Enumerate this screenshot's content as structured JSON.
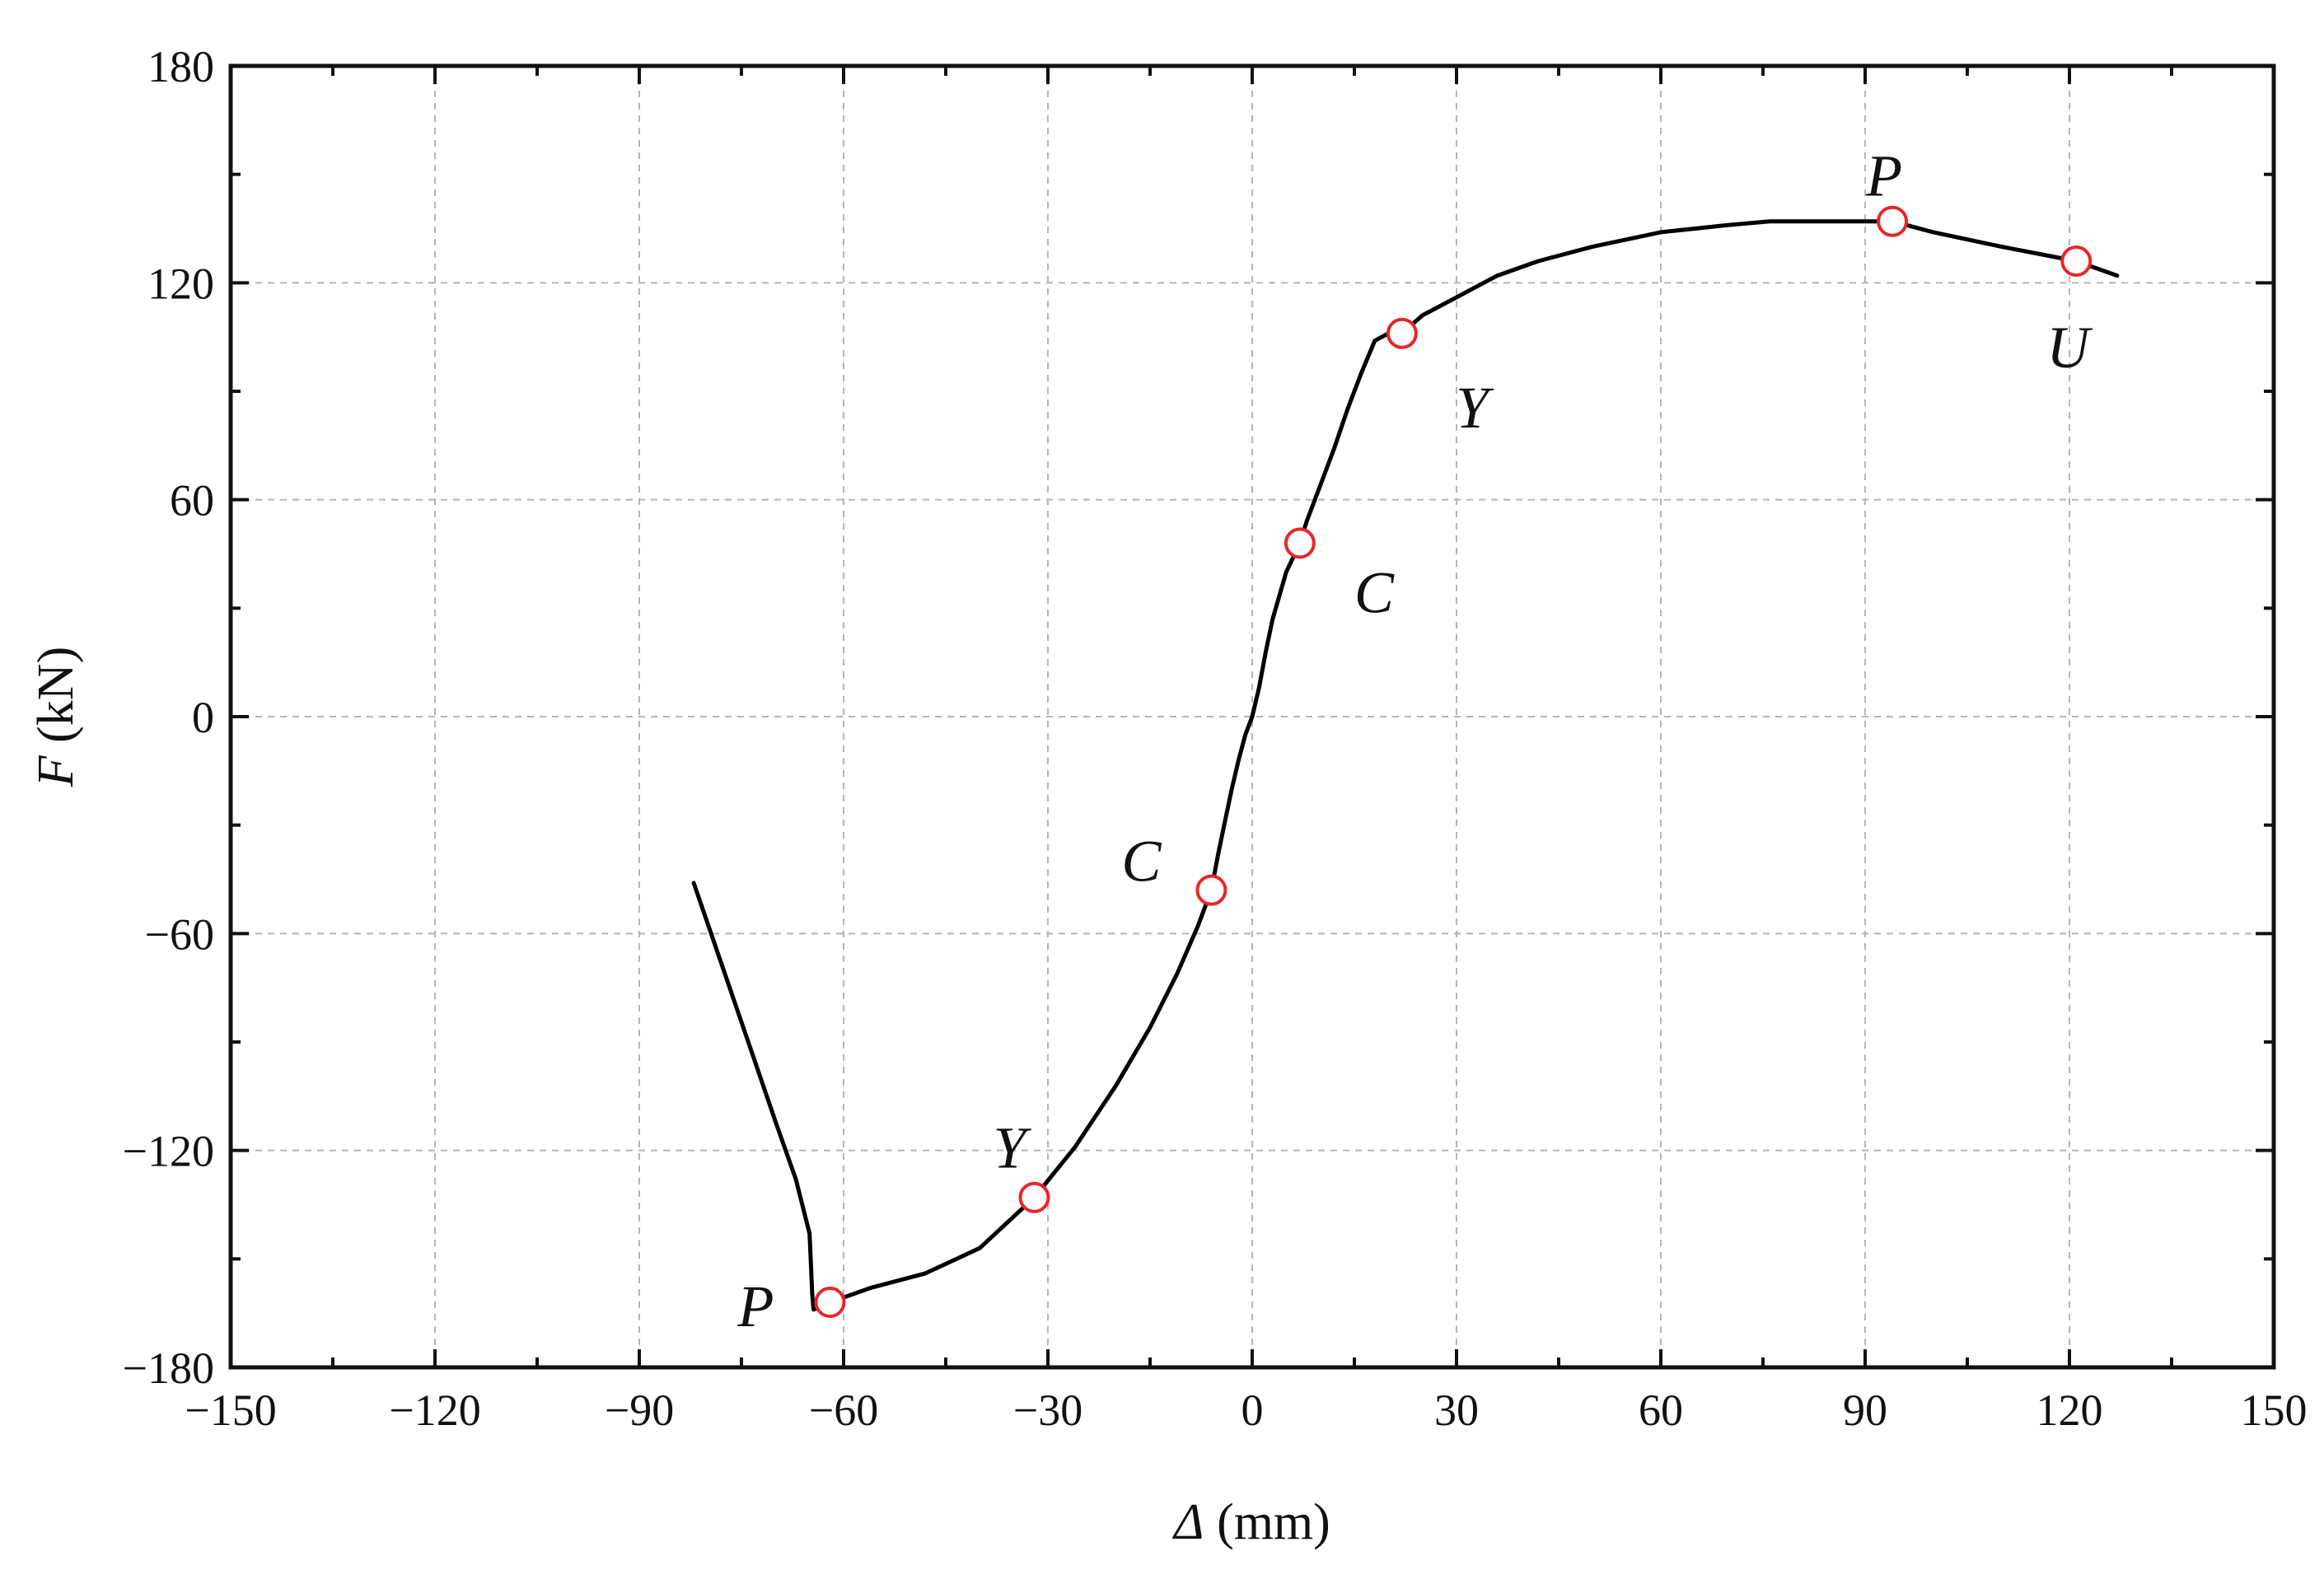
{
  "chart_data": {
    "type": "line",
    "title": "",
    "xlabel": {
      "symbol": "Δ",
      "unit": " (mm)"
    },
    "ylabel": {
      "symbol": "F",
      "unit": "  (kN)"
    },
    "xlim": [
      -150,
      150
    ],
    "ylim": [
      -180,
      180
    ],
    "xticks": [
      -150,
      -120,
      -90,
      -60,
      -30,
      0,
      30,
      60,
      90,
      120,
      150
    ],
    "yticks": [
      -180,
      -120,
      -60,
      0,
      60,
      120,
      180
    ],
    "xtick_labels": [
      "−150",
      "−120",
      "−90",
      "−60",
      "−30",
      "0",
      "30",
      "60",
      "90",
      "120",
      "150"
    ],
    "ytick_labels": [
      "−180",
      "−120",
      "−60",
      "0",
      "60",
      "120",
      "180"
    ],
    "grid": true,
    "series": [
      {
        "x": [
          -82,
          -78,
          -74,
          -70,
          -67,
          -65,
          -64.6,
          -64.4,
          -62,
          -56,
          -48,
          -40,
          -32,
          -26,
          -20,
          -15,
          -11,
          -8,
          -6,
          -5,
          -4,
          -3,
          -2,
          -1,
          0,
          1,
          2,
          3,
          5,
          7,
          8,
          10,
          12,
          14,
          16,
          18,
          20,
          22,
          25,
          30,
          36,
          42,
          50,
          60,
          70,
          76,
          84,
          90,
          94,
          100,
          110,
          121,
          127
        ],
        "y": [
          -46,
          -68,
          -90,
          -112,
          -128,
          -143,
          -160,
          -164,
          -162,
          -158,
          -154,
          -147,
          -133,
          -119,
          -102,
          -86,
          -71,
          -58,
          -48,
          -38,
          -29,
          -20,
          -12,
          -5,
          0,
          8,
          18,
          27,
          40,
          48,
          54,
          64,
          74,
          85,
          95,
          104,
          106,
          106,
          111,
          116,
          122,
          126,
          130,
          134,
          136,
          137,
          137,
          137,
          137,
          134,
          130,
          126,
          122
        ]
      }
    ],
    "markers": [
      {
        "x": -62,
        "y": -162,
        "label": "P"
      },
      {
        "x": -32,
        "y": -133,
        "label": "Y"
      },
      {
        "x": -6,
        "y": -48,
        "label": "C"
      },
      {
        "x": 7,
        "y": 48,
        "label": "C"
      },
      {
        "x": 22,
        "y": 106,
        "label": "Y"
      },
      {
        "x": 94,
        "y": 137,
        "label": "P"
      },
      {
        "x": 121,
        "y": 126,
        "label": "U"
      }
    ],
    "marker_color": "#e8262b",
    "line_color": "#000000"
  }
}
